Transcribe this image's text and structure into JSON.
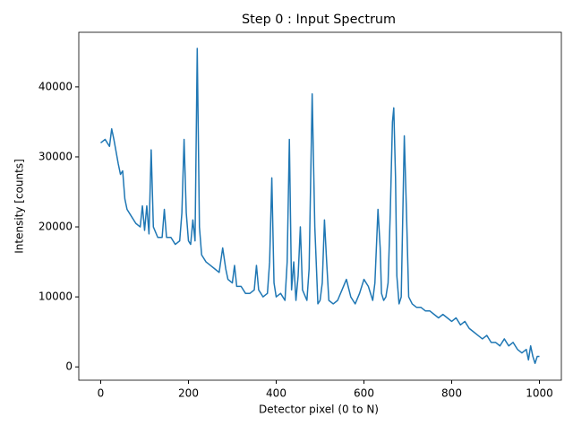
{
  "chart_data": {
    "type": "line",
    "title": "Step 0 : Input Spectrum",
    "x_label": "Detector pixel (0 to N)",
    "y_label": "Intensity [counts]",
    "xlim": [
      -50,
      1050
    ],
    "ylim": [
      -1900,
      47800
    ],
    "xticks": [
      0,
      200,
      400,
      600,
      800,
      1000
    ],
    "yticks": [
      0,
      10000,
      20000,
      30000,
      40000
    ],
    "grid": false,
    "x": [
      0,
      10,
      20,
      25,
      30,
      40,
      45,
      50,
      55,
      60,
      70,
      80,
      90,
      95,
      100,
      105,
      110,
      115,
      120,
      130,
      140,
      145,
      150,
      160,
      170,
      180,
      185,
      190,
      195,
      200,
      205,
      210,
      215,
      220,
      225,
      230,
      240,
      250,
      260,
      270,
      278,
      285,
      290,
      300,
      305,
      310,
      320,
      330,
      340,
      350,
      355,
      360,
      370,
      380,
      385,
      390,
      395,
      400,
      410,
      420,
      425,
      430,
      435,
      440,
      445,
      450,
      455,
      460,
      470,
      475,
      482,
      488,
      495,
      500,
      505,
      510,
      515,
      520,
      530,
      540,
      550,
      560,
      570,
      580,
      590,
      600,
      610,
      620,
      625,
      632,
      637,
      640,
      645,
      650,
      655,
      660,
      665,
      668,
      672,
      675,
      680,
      685,
      692,
      697,
      702,
      710,
      720,
      730,
      740,
      750,
      760,
      770,
      780,
      790,
      800,
      810,
      820,
      830,
      840,
      850,
      860,
      870,
      880,
      890,
      900,
      910,
      920,
      930,
      940,
      950,
      960,
      970,
      975,
      980,
      985,
      990,
      995,
      1000
    ],
    "series": [
      {
        "name": "spectrum",
        "color": "#1f77b4",
        "values": [
          32000,
          32500,
          31500,
          34000,
          32500,
          29000,
          27500,
          28000,
          24000,
          22500,
          21500,
          20500,
          20000,
          23000,
          19500,
          23000,
          19000,
          31000,
          20000,
          18500,
          18500,
          22500,
          18500,
          18500,
          17500,
          18000,
          22000,
          32500,
          22000,
          18000,
          17500,
          21000,
          18000,
          45500,
          20000,
          16000,
          15000,
          14500,
          14000,
          13500,
          17000,
          14000,
          12500,
          12000,
          14500,
          11500,
          11500,
          10500,
          10500,
          11000,
          14500,
          11000,
          10000,
          10500,
          15000,
          27000,
          12000,
          10000,
          10500,
          9500,
          15000,
          32500,
          11000,
          15000,
          9500,
          13000,
          20000,
          11000,
          9500,
          14000,
          39000,
          20000,
          9000,
          9500,
          12000,
          21000,
          15000,
          9500,
          9000,
          9500,
          11000,
          12500,
          10000,
          9000,
          10500,
          12500,
          11500,
          9500,
          12000,
          22500,
          17000,
          10500,
          9500,
          10000,
          12000,
          22000,
          35000,
          37000,
          27000,
          13000,
          9000,
          10000,
          33000,
          22000,
          10000,
          9000,
          8500,
          8500,
          8000,
          8000,
          7500,
          7000,
          7500,
          7000,
          6500,
          7000,
          6000,
          6500,
          5500,
          5000,
          4500,
          4000,
          4500,
          3500,
          3500,
          3000,
          4000,
          3000,
          3500,
          2500,
          2000,
          2500,
          1000,
          3000,
          1500,
          500,
          1500,
          1500
        ]
      }
    ]
  }
}
